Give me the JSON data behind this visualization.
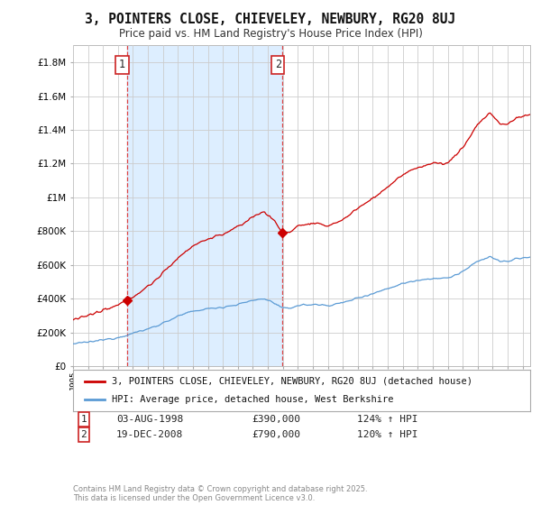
{
  "title": "3, POINTERS CLOSE, CHIEVELEY, NEWBURY, RG20 8UJ",
  "subtitle": "Price paid vs. HM Land Registry's House Price Index (HPI)",
  "sale1_date": "03-AUG-1998",
  "sale1_price": 390000,
  "sale1_label": "1",
  "sale1_hpi": "124% ↑ HPI",
  "sale2_date": "19-DEC-2008",
  "sale2_price": 790000,
  "sale2_label": "2",
  "sale2_hpi": "120% ↑ HPI",
  "legend1": "3, POINTERS CLOSE, CHIEVELEY, NEWBURY, RG20 8UJ (detached house)",
  "legend2": "HPI: Average price, detached house, West Berkshire",
  "footer": "Contains HM Land Registry data © Crown copyright and database right 2025.\nThis data is licensed under the Open Government Licence v3.0.",
  "house_color": "#cc0000",
  "hpi_color": "#5b9bd5",
  "shade_color": "#ddeeff",
  "background_color": "#ffffff",
  "grid_color": "#cccccc",
  "ylim": [
    0,
    1900000
  ],
  "xlim_start": 1995.0,
  "xlim_end": 2025.5,
  "sale1_x": 1998.58,
  "sale2_x": 2008.97
}
